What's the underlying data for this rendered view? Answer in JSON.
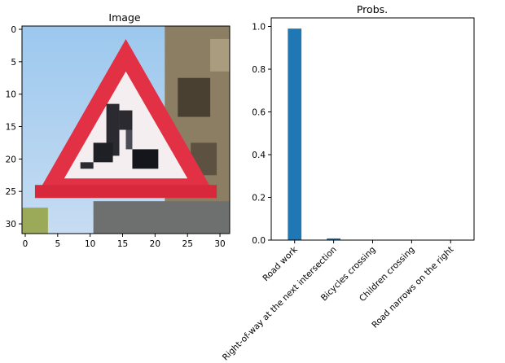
{
  "chart_data": [
    {
      "type": "heatmap",
      "title": "Image",
      "xlabel": "",
      "ylabel": "",
      "xlim": [
        -0.5,
        31.5
      ],
      "ylim": [
        31.5,
        -0.5
      ],
      "x_ticks": [
        0,
        5,
        10,
        15,
        20,
        25,
        30
      ],
      "y_ticks": [
        0,
        5,
        10,
        15,
        20,
        25,
        30
      ],
      "content": "32x32 RGB image of a red-bordered triangular warning sign (road work)"
    },
    {
      "type": "bar",
      "title": "Probs.",
      "xlabel": "",
      "ylabel": "",
      "categories": [
        "Road work",
        "Right-of-way at the next intersection",
        "Bicycles crossing",
        "Children crossing",
        "Road narrows on the right"
      ],
      "values": [
        0.99,
        0.008,
        0.001,
        0.0005,
        0.0003
      ],
      "ylim": [
        0,
        1.04
      ],
      "y_ticks": [
        0.0,
        0.2,
        0.4,
        0.6,
        0.8,
        1.0
      ],
      "y_tick_labels": [
        "0.0",
        "0.2",
        "0.4",
        "0.6",
        "0.8",
        "1.0"
      ],
      "bar_color": "#1f77b4",
      "grid": false
    }
  ]
}
